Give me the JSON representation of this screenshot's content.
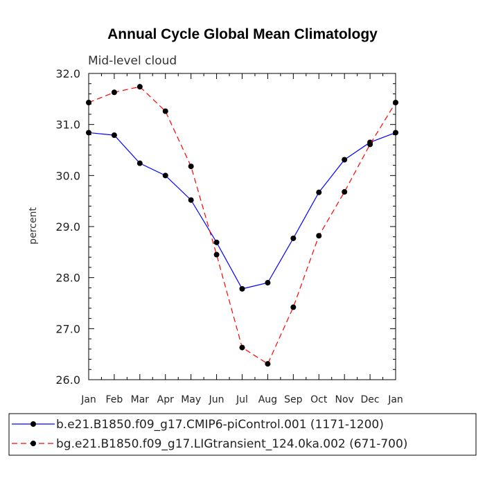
{
  "chart_data": {
    "type": "line",
    "title": "Annual Cycle Global Mean Climatology",
    "subtitle": "Mid-level cloud",
    "xlabel": "",
    "ylabel": "percent",
    "categories": [
      "Jan",
      "Feb",
      "Mar",
      "Apr",
      "May",
      "Jun",
      "Jul",
      "Aug",
      "Sep",
      "Oct",
      "Nov",
      "Dec",
      "Jan"
    ],
    "ylim": [
      26.0,
      32.0
    ],
    "yticks": [
      26.0,
      27.0,
      28.0,
      29.0,
      30.0,
      31.0,
      32.0
    ],
    "ytick_labels": [
      "26.0",
      "27.0",
      "28.0",
      "29.0",
      "30.0",
      "31.0",
      "32.0"
    ],
    "grid": false,
    "legend_position": "bottom",
    "series": [
      {
        "name": "b.e21.B1850.f09_g17.CMIP6-piControl.001 (1171-1200)",
        "color": "#0000ff",
        "dash": "solid",
        "values": [
          30.84,
          30.79,
          30.24,
          30.0,
          29.52,
          28.69,
          27.78,
          27.9,
          28.77,
          29.67,
          30.31,
          30.65,
          30.84
        ]
      },
      {
        "name": "bg.e21.B1850.f09_g17.LIGtransient_124.0ka.002 (671-700)",
        "color": "#ff0000",
        "dash": "dashed",
        "values": [
          31.43,
          31.63,
          31.74,
          31.26,
          30.18,
          28.45,
          26.63,
          26.31,
          27.42,
          28.82,
          29.68,
          30.61,
          31.43
        ]
      }
    ]
  }
}
